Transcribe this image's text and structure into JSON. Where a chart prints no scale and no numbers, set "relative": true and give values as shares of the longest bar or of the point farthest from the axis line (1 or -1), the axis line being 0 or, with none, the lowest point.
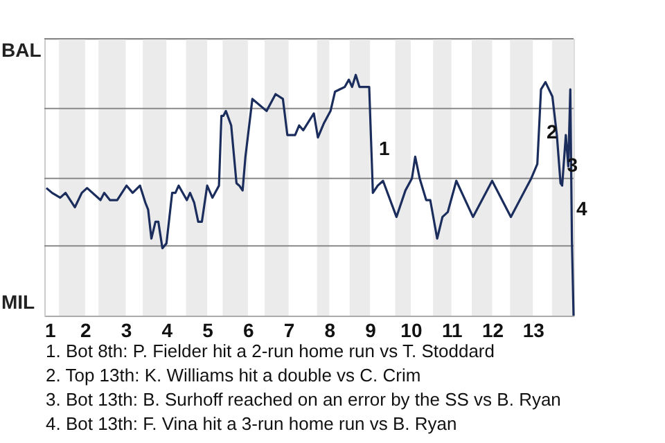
{
  "chart_data": {
    "type": "line",
    "relative": true,
    "x": [
      1.05,
      1.19,
      1.39,
      1.52,
      1.75,
      1.92,
      2.05,
      2.38,
      2.47,
      2.61,
      2.79,
      3.02,
      3.17,
      3.35,
      3.48,
      3.55,
      3.63,
      3.73,
      3.8,
      3.9,
      4,
      4.14,
      4.22,
      4.3,
      4.5,
      4.58,
      4.68,
      4.78,
      4.87,
      5,
      5.13,
      5.29,
      5.35,
      5.4,
      5.46,
      5.59,
      5.72,
      5.79,
      5.87,
      5.94,
      6.11,
      6.46,
      6.68,
      6.86,
      6.97,
      7.16,
      7.26,
      7.36,
      7.62,
      7.72,
      7.87,
      8.03,
      8.14,
      8.26,
      8.38,
      8.48,
      8.56,
      8.65,
      8.74,
      8.98,
      9.04,
      9.07,
      9.19,
      9.32,
      9.65,
      9.87,
      10.03,
      10.11,
      10.22,
      10.38,
      10.48,
      10.65,
      10.78,
      10.91,
      11.12,
      11.53,
      12,
      12.46,
      12.96,
      13.11,
      13.2,
      13.31,
      13.48,
      13.59,
      13.68,
      13.72,
      13.81,
      13.87,
      13.92,
      13.96,
      14
    ],
    "series": [
      {
        "color": "#1b2d5c",
        "values": [
          0.53,
          0.51,
          0.49,
          0.51,
          0.45,
          0.51,
          0.53,
          0.48,
          0.51,
          0.48,
          0.48,
          0.54,
          0.51,
          0.54,
          0.47,
          0.44,
          0.32,
          0.39,
          0.39,
          0.28,
          0.3,
          0.51,
          0.51,
          0.54,
          0.48,
          0.51,
          0.47,
          0.39,
          0.39,
          0.54,
          0.49,
          0.54,
          0.83,
          0.83,
          0.85,
          0.79,
          0.55,
          0.54,
          0.52,
          0.66,
          0.9,
          0.85,
          0.92,
          0.9,
          0.75,
          0.75,
          0.79,
          0.77,
          0.84,
          0.74,
          0.8,
          0.85,
          0.93,
          0.94,
          0.95,
          0.98,
          0.95,
          1,
          0.95,
          0.95,
          0.66,
          0.51,
          0.54,
          0.56,
          0.41,
          0.52,
          0.57,
          0.66,
          0.57,
          0.48,
          0.48,
          0.32,
          0.41,
          0.43,
          0.56,
          0.41,
          0.56,
          0.41,
          0.57,
          0.63,
          0.94,
          0.97,
          0.91,
          0.75,
          0.55,
          0.54,
          0.75,
          0.62,
          0.94,
          0.31,
          0
        ]
      }
    ],
    "xlim": [
      1,
      14
    ],
    "xticks": [
      1,
      2,
      3,
      4,
      5,
      6,
      7,
      8,
      9,
      10,
      11,
      12,
      13
    ],
    "tick_labels": "x",
    "ref_lines": [
      {
        "axis": "y",
        "value": 0.29,
        "color": "#888888"
      },
      {
        "axis": "y",
        "value": 0.57,
        "color": "#888888"
      },
      {
        "axis": "y",
        "value": 0.86,
        "color": "#888888"
      },
      {
        "axis": "y",
        "value": 1.15,
        "color": "#888888"
      }
    ],
    "bands": [
      {
        "axis": "x",
        "from": 1.36,
        "to": 2,
        "color": "#ebebeb"
      },
      {
        "axis": "x",
        "from": 2.33,
        "to": 3,
        "color": "#ebebeb"
      },
      {
        "axis": "x",
        "from": 3.42,
        "to": 4,
        "color": "#ebebeb"
      },
      {
        "axis": "x",
        "from": 4.48,
        "to": 5,
        "color": "#ebebeb"
      },
      {
        "axis": "x",
        "from": 5.38,
        "to": 6,
        "color": "#ebebeb"
      },
      {
        "axis": "x",
        "from": 6.41,
        "to": 7,
        "color": "#ebebeb"
      },
      {
        "axis": "x",
        "from": 7.7,
        "to": 8,
        "color": "#ebebeb"
      },
      {
        "axis": "x",
        "from": 8.5,
        "to": 9,
        "color": "#ebebeb"
      },
      {
        "axis": "x",
        "from": 9.62,
        "to": 10,
        "color": "#ebebeb"
      },
      {
        "axis": "x",
        "from": 10.55,
        "to": 11,
        "color": "#ebebeb"
      },
      {
        "axis": "x",
        "from": 11.5,
        "to": 12,
        "color": "#ebebeb"
      },
      {
        "axis": "x",
        "from": 12.44,
        "to": 13,
        "color": "#ebebeb"
      },
      {
        "axis": "x",
        "from": 13.47,
        "to": 14,
        "color": "#ebebeb"
      }
    ],
    "annotations": [
      "BAL",
      "MIL",
      {
        "text": "1",
        "x": 9.15,
        "y": 0.69
      },
      {
        "text": "2",
        "x": 13.27,
        "y": 0.76
      },
      {
        "text": "3",
        "x": 13.77,
        "y": 0.62
      },
      {
        "text": "4",
        "x": 14,
        "y": 0.44
      },
      "1. Bot 8th: P. Fielder hit a 2-run home run vs T. Stoddard",
      "2. Top 13th: K. Williams hit a double vs C. Crim",
      "3. Bot 13th: B. Surhoff reached on an error by the SS vs B. Ryan",
      "4. Bot 13th: F. Vina hit a 3-run home run vs B. Ryan"
    ]
  }
}
